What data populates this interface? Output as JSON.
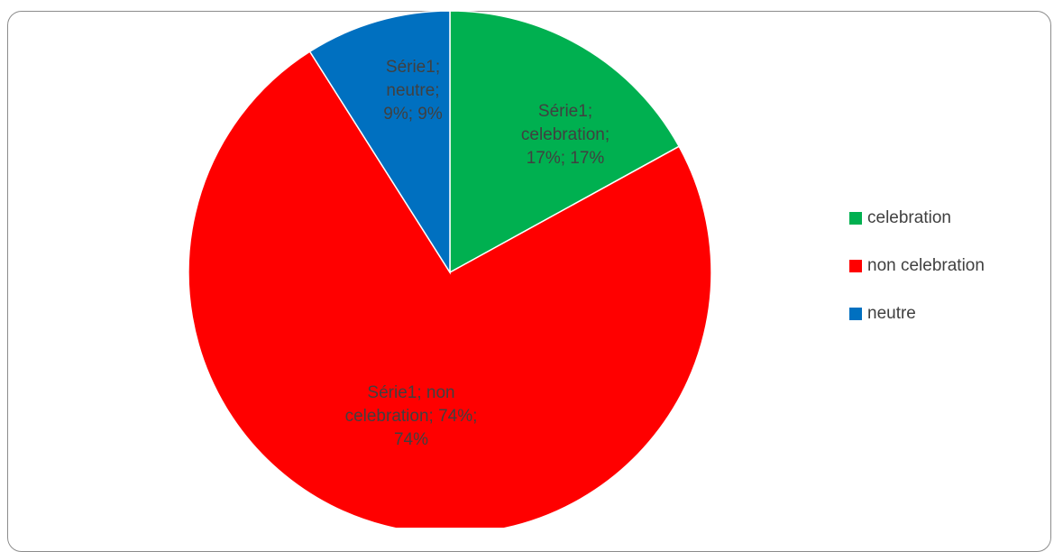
{
  "chart_data": {
    "type": "pie",
    "title": "",
    "series_name": "Série1",
    "categories": [
      "celebration",
      "non celebration",
      "neutre"
    ],
    "values": [
      17,
      74,
      9
    ],
    "colors": [
      "#00b050",
      "#ff0000",
      "#0070c0"
    ],
    "data_labels": [
      [
        "Série1;",
        "celebration;",
        "17%; 17%"
      ],
      [
        "Série1; non",
        "celebration; 74%;",
        "74%"
      ],
      [
        "Série1;",
        "neutre;",
        "9%; 9%"
      ]
    ],
    "legend_position": "right",
    "start_angle": "12 o'clock",
    "direction": "clockwise"
  },
  "legend": {
    "items": [
      {
        "label": "celebration",
        "color": "#00b050"
      },
      {
        "label": "non celebration",
        "color": "#ff0000"
      },
      {
        "label": "neutre",
        "color": "#0070c0"
      }
    ]
  }
}
